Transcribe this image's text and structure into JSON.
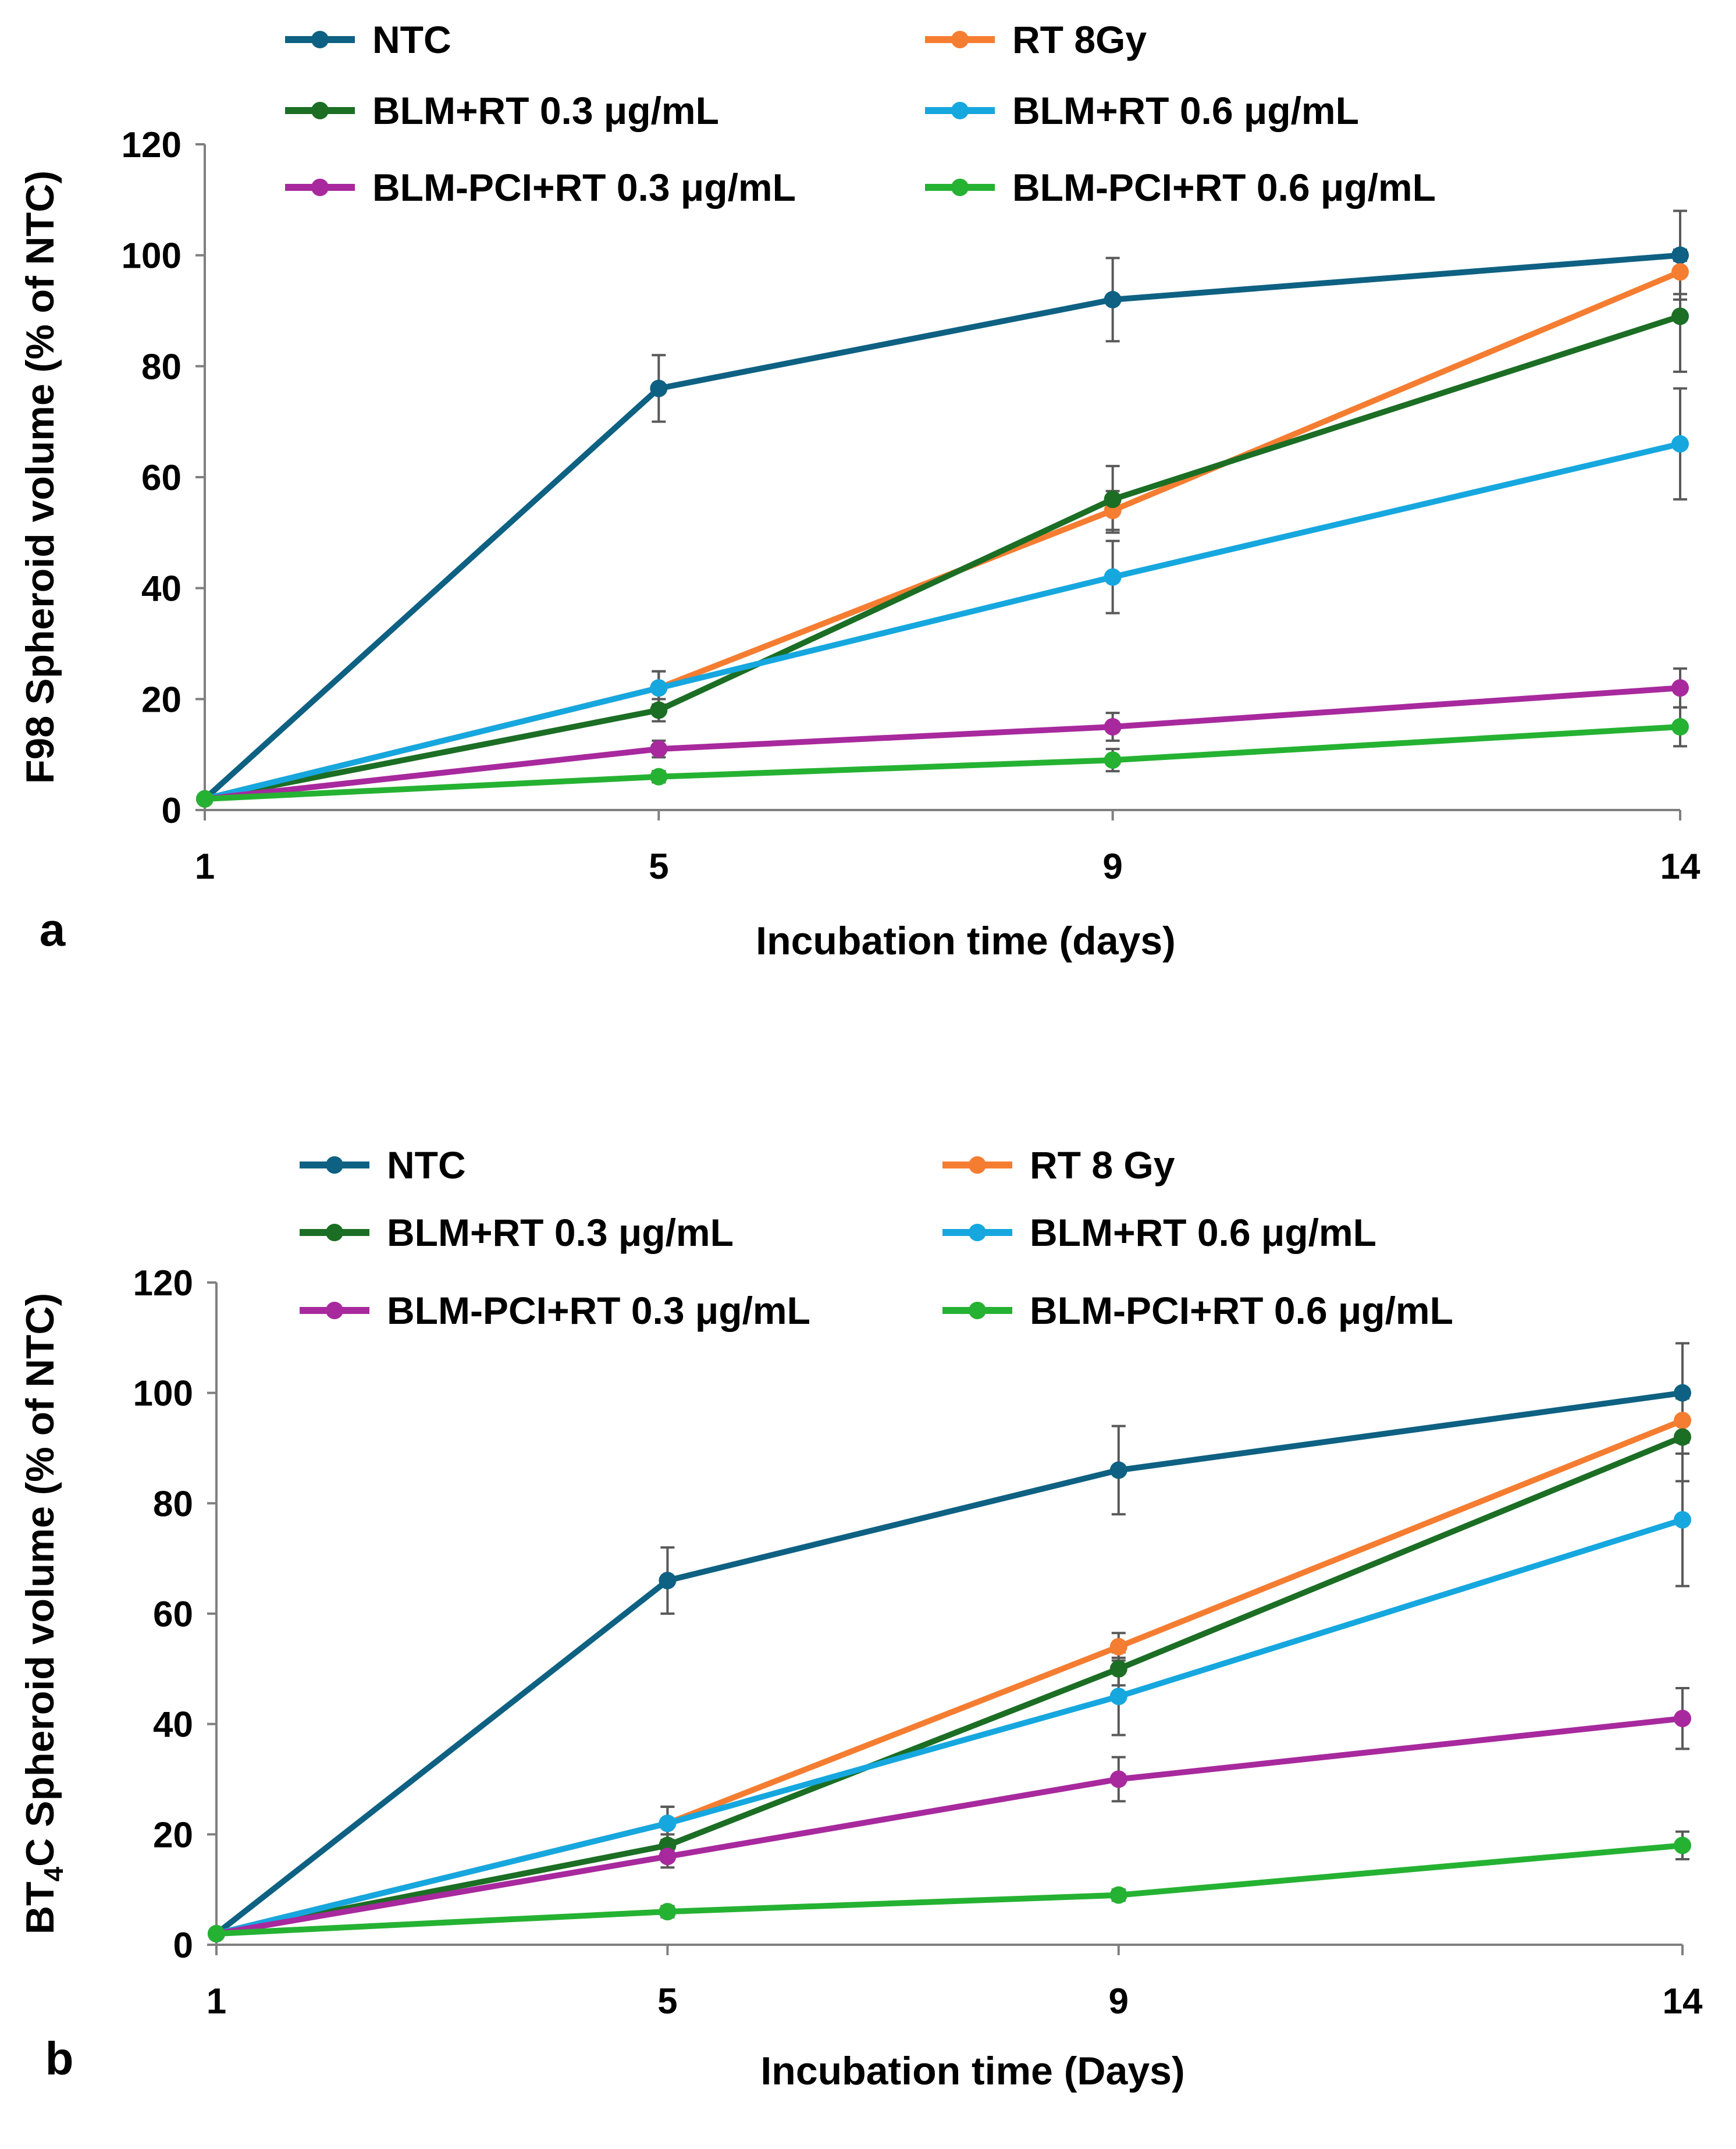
{
  "chart_data": [
    {
      "type": "line",
      "panel_label": "a",
      "title": "",
      "xlabel": "Incubation time (days)",
      "ylabel": "F98 Spheroid volume (% of NTC)",
      "ylabel_parts": {
        "pre": "F98 Spheroid volume (% of NTC)",
        "sub": "",
        "post": ""
      },
      "x": [
        1,
        5,
        9,
        14
      ],
      "x_tick_labels": [
        "1",
        "5",
        "9",
        "14"
      ],
      "ylim": [
        0,
        120
      ],
      "y_ticks": [
        0,
        20,
        40,
        60,
        80,
        100,
        120
      ],
      "grid": false,
      "legend_placement": "top",
      "series": [
        {
          "name": "NTC",
          "color": "#0E6182",
          "values": [
            2,
            76,
            92,
            100
          ],
          "errors": [
            0,
            6,
            7.5,
            8
          ]
        },
        {
          "name": "RT 8Gy",
          "color": "#F57D31",
          "values": [
            2,
            22,
            54,
            97
          ],
          "errors": [
            0,
            3,
            3.5,
            4
          ]
        },
        {
          "name": "BLM+RT 0.3 μg/mL",
          "color": "#1B6E24",
          "values": [
            2,
            18,
            56,
            89
          ],
          "errors": [
            0,
            2,
            6,
            10
          ]
        },
        {
          "name": "BLM+RT 0.6 μg/mL",
          "color": "#16A7DF",
          "values": [
            2,
            22,
            42,
            66
          ],
          "errors": [
            0,
            3,
            6.5,
            10
          ]
        },
        {
          "name": "BLM-PCI+RT 0.3 μg/mL",
          "color": "#A8299D",
          "values": [
            2,
            11,
            15,
            22
          ],
          "errors": [
            0,
            1.5,
            2.5,
            3.5
          ]
        },
        {
          "name": "BLM-PCI+RT 0.6 μg/mL",
          "color": "#25B232",
          "values": [
            2,
            6,
            9,
            15
          ],
          "errors": [
            0,
            1,
            2,
            3.5
          ]
        }
      ]
    },
    {
      "type": "line",
      "panel_label": "b",
      "title": "",
      "xlabel": "Incubation time (Days)",
      "ylabel": "BT4C Spheroid volume (% of NTC)",
      "ylabel_parts": {
        "pre": "BT",
        "sub": "4",
        "post": "C Spheroid volume (% of NTC)"
      },
      "x": [
        1,
        5,
        9,
        14
      ],
      "x_tick_labels": [
        "1",
        "5",
        "9",
        "14"
      ],
      "ylim": [
        0,
        120
      ],
      "y_ticks": [
        0,
        20,
        40,
        60,
        80,
        100,
        120
      ],
      "grid": false,
      "legend_placement": "top",
      "series": [
        {
          "name": "NTC",
          "color": "#0E6182",
          "values": [
            2,
            66,
            86,
            100
          ],
          "errors": [
            0,
            6,
            8,
            9
          ]
        },
        {
          "name": "RT 8 Gy",
          "color": "#F57D31",
          "values": [
            2,
            22,
            54,
            95
          ],
          "errors": [
            0,
            3,
            2.5,
            4
          ]
        },
        {
          "name": "BLM+RT 0.3 μg/mL",
          "color": "#1B6E24",
          "values": [
            2,
            18,
            50,
            92
          ],
          "errors": [
            0,
            2,
            3,
            8
          ]
        },
        {
          "name": "BLM+RT 0.6 μg/mL",
          "color": "#16A7DF",
          "values": [
            2,
            22,
            45,
            77
          ],
          "errors": [
            0,
            3,
            7,
            12
          ]
        },
        {
          "name": "BLM-PCI+RT 0.3 μg/mL",
          "color": "#A8299D",
          "values": [
            2,
            16,
            30,
            41
          ],
          "errors": [
            0,
            2,
            4,
            5.5
          ]
        },
        {
          "name": "BLM-PCI+RT 0.6 μg/mL",
          "color": "#25B232",
          "values": [
            2,
            6,
            9,
            18
          ],
          "errors": [
            0,
            1,
            1,
            2.5
          ]
        }
      ]
    }
  ]
}
